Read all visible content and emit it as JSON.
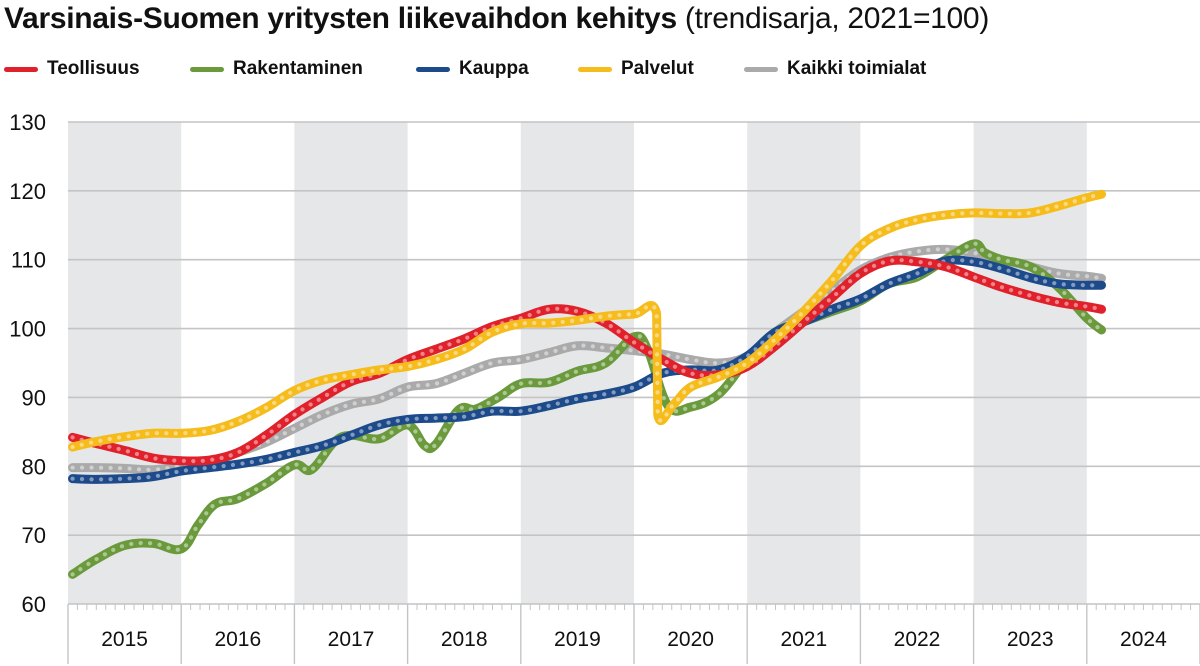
{
  "chart_data": {
    "type": "line",
    "title": "Varsinais-Suomen yritysten liikevaihdon kehitys",
    "subtitle": "(trendisarja, 2021=100)",
    "xlabel": "",
    "ylabel": "",
    "ylim": [
      60,
      130
    ],
    "yticks": [
      "60",
      "70",
      "80",
      "90",
      "100",
      "110",
      "120",
      "130"
    ],
    "ytick_values": [
      60,
      70,
      80,
      90,
      100,
      110,
      120,
      130
    ],
    "xlim": [
      2015,
      2025
    ],
    "xticks": [
      "2015",
      "2016",
      "2017",
      "2018",
      "2019",
      "2020",
      "2021",
      "2022",
      "2023",
      "2024"
    ],
    "grid": "horizontal",
    "shaded_years": [
      "2015",
      "2017",
      "2019",
      "2021",
      "2023"
    ],
    "legend_position": "top-left",
    "series": [
      {
        "name": "Teollisuus",
        "color": "#e0202a",
        "x": [
          2015.04,
          2015.25,
          2015.5,
          2015.75,
          2016.0,
          2016.25,
          2016.5,
          2016.75,
          2017.0,
          2017.25,
          2017.5,
          2017.75,
          2018.0,
          2018.25,
          2018.5,
          2018.75,
          2019.0,
          2019.25,
          2019.5,
          2019.75,
          2020.0,
          2020.25,
          2020.5,
          2020.75,
          2021.0,
          2021.25,
          2021.5,
          2021.75,
          2022.0,
          2022.25,
          2022.5,
          2022.75,
          2023.0,
          2023.25,
          2023.5,
          2023.75,
          2024.0,
          2024.13
        ],
        "values": [
          84.2,
          83.3,
          82.3,
          81.2,
          80.8,
          80.9,
          82.0,
          84.5,
          87.5,
          90.0,
          92.3,
          93.5,
          95.5,
          97.0,
          98.5,
          100.3,
          101.5,
          102.8,
          102.5,
          100.8,
          98.0,
          95.5,
          93.5,
          93.3,
          94.5,
          97.5,
          101.0,
          104.5,
          108.0,
          109.8,
          109.7,
          109.0,
          107.5,
          106.0,
          104.8,
          103.8,
          103.2,
          102.8
        ]
      },
      {
        "name": "Rakentaminen",
        "color": "#6a9a3c",
        "x": [
          2015.04,
          2015.25,
          2015.5,
          2015.75,
          2016.0,
          2016.15,
          2016.3,
          2016.5,
          2016.75,
          2017.0,
          2017.15,
          2017.35,
          2017.5,
          2017.75,
          2018.0,
          2018.15,
          2018.25,
          2018.45,
          2018.6,
          2018.8,
          2019.0,
          2019.25,
          2019.5,
          2019.75,
          2020.0,
          2020.12,
          2020.3,
          2020.5,
          2020.75,
          2021.0,
          2021.25,
          2021.5,
          2021.75,
          2022.0,
          2022.25,
          2022.5,
          2022.75,
          2023.0,
          2023.1,
          2023.25,
          2023.5,
          2023.75,
          2024.0,
          2024.13
        ],
        "values": [
          64.3,
          66.5,
          68.5,
          68.8,
          68.0,
          71.5,
          74.5,
          75.3,
          77.5,
          80.2,
          79.5,
          83.5,
          84.5,
          84.0,
          86.0,
          83.0,
          83.2,
          88.2,
          88.3,
          90.0,
          92.0,
          92.2,
          93.8,
          95.0,
          98.8,
          97.0,
          88.8,
          88.6,
          90.5,
          95.5,
          99.5,
          101.0,
          102.5,
          104.0,
          106.5,
          107.5,
          110.0,
          112.3,
          111.0,
          110.0,
          109.0,
          106.0,
          101.5,
          99.8
        ]
      },
      {
        "name": "Kauppa",
        "color": "#1c4a8a",
        "x": [
          2015.04,
          2015.25,
          2015.5,
          2015.75,
          2016.0,
          2016.25,
          2016.5,
          2016.75,
          2017.0,
          2017.25,
          2017.5,
          2017.75,
          2018.0,
          2018.25,
          2018.5,
          2018.75,
          2019.0,
          2019.25,
          2019.5,
          2019.75,
          2020.0,
          2020.25,
          2020.5,
          2020.75,
          2021.0,
          2021.25,
          2021.5,
          2021.75,
          2022.0,
          2022.25,
          2022.5,
          2022.75,
          2023.0,
          2023.25,
          2023.5,
          2023.75,
          2024.0,
          2024.13
        ],
        "values": [
          78.2,
          78.1,
          78.2,
          78.5,
          79.3,
          79.8,
          80.3,
          81.0,
          82.0,
          83.0,
          84.5,
          86.0,
          86.8,
          87.0,
          87.2,
          88.0,
          88.0,
          88.8,
          89.8,
          90.5,
          91.5,
          93.5,
          94.0,
          94.0,
          96.0,
          99.5,
          101.0,
          102.8,
          104.3,
          106.5,
          108.0,
          109.8,
          109.7,
          108.7,
          107.4,
          106.5,
          106.3,
          106.3
        ]
      },
      {
        "name": "Palvelut",
        "color": "#f5bc1c",
        "x": [
          2015.04,
          2015.25,
          2015.5,
          2015.75,
          2016.0,
          2016.25,
          2016.5,
          2016.75,
          2017.0,
          2017.25,
          2017.5,
          2017.75,
          2018.0,
          2018.25,
          2018.5,
          2018.75,
          2019.0,
          2019.25,
          2019.5,
          2019.75,
          2020.0,
          2020.2,
          2020.21,
          2020.35,
          2020.5,
          2020.75,
          2021.0,
          2021.25,
          2021.5,
          2021.75,
          2022.0,
          2022.25,
          2022.5,
          2022.75,
          2023.0,
          2023.25,
          2023.5,
          2023.75,
          2024.0,
          2024.13
        ],
        "values": [
          82.8,
          83.6,
          84.3,
          84.8,
          84.8,
          85.2,
          86.5,
          88.5,
          91.0,
          92.5,
          93.3,
          94.0,
          94.5,
          95.5,
          97.0,
          99.5,
          100.7,
          100.8,
          101.2,
          101.8,
          102.1,
          102.2,
          87.5,
          89.0,
          91.5,
          93.0,
          95.0,
          98.5,
          102.5,
          107.0,
          112.0,
          114.5,
          115.8,
          116.5,
          116.8,
          116.7,
          116.8,
          117.8,
          119.0,
          119.5
        ]
      },
      {
        "name": "Kaikki toimialat",
        "color": "#aaaaaa",
        "x": [
          2015.04,
          2015.25,
          2015.5,
          2015.75,
          2016.0,
          2016.25,
          2016.5,
          2016.75,
          2017.0,
          2017.25,
          2017.5,
          2017.75,
          2018.0,
          2018.25,
          2018.5,
          2018.75,
          2019.0,
          2019.25,
          2019.5,
          2019.75,
          2020.0,
          2020.25,
          2020.5,
          2020.75,
          2021.0,
          2021.25,
          2021.5,
          2021.75,
          2022.0,
          2022.25,
          2022.5,
          2022.75,
          2023.0,
          2023.25,
          2023.5,
          2023.75,
          2024.0,
          2024.13
        ],
        "values": [
          79.8,
          79.8,
          79.7,
          79.5,
          80.0,
          80.5,
          82.0,
          83.5,
          85.5,
          87.5,
          89.0,
          89.8,
          91.5,
          92.0,
          93.5,
          95.0,
          95.5,
          96.5,
          97.5,
          97.2,
          96.8,
          96.3,
          95.5,
          95.0,
          96.0,
          99.5,
          102.5,
          105.5,
          108.5,
          110.3,
          111.2,
          111.5,
          111.0,
          110.0,
          109.0,
          108.0,
          107.6,
          107.3
        ]
      }
    ]
  }
}
